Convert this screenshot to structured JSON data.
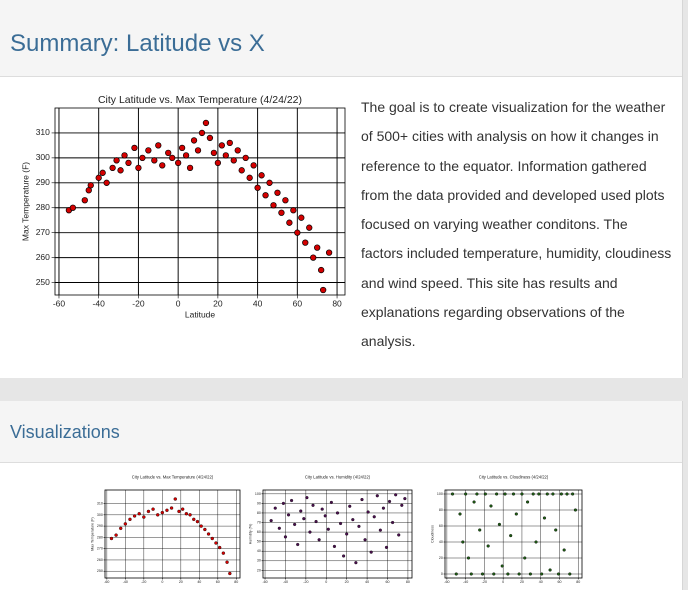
{
  "header": {
    "title": "Summary: Latitude vs X"
  },
  "summary": {
    "text": "The goal is to create visualization for the weather of 500+ cities with analysis on how it changes in reference to the equator. Information gathered from the data provided and developed used plots focused on varying weather conditons. The factors included temperature, humidity, cloudiness and wind speed. This site has results and explanations regarding observations of the analysis."
  },
  "visualizations": {
    "title": "Visualizations"
  },
  "chart_data": [
    {
      "type": "scatter",
      "title": "City Latitude vs. Max Temperature (4/24/22)",
      "xlabel": "Latitude",
      "ylabel": "Max Temperature (F)",
      "x": [
        -55,
        -53,
        -47,
        -45,
        -44,
        -40,
        -38,
        -36,
        -33,
        -31,
        -29,
        -27,
        -25,
        -22,
        -20,
        -18,
        -15,
        -12,
        -10,
        -8,
        -5,
        -3,
        0,
        2,
        4,
        6,
        8,
        10,
        12,
        14,
        16,
        18,
        20,
        22,
        24,
        26,
        28,
        30,
        32,
        34,
        36,
        38,
        40,
        42,
        44,
        46,
        48,
        50,
        52,
        54,
        56,
        58,
        60,
        62,
        64,
        66,
        68,
        70,
        72,
        73,
        76
      ],
      "values": [
        279,
        280,
        283,
        287,
        289,
        292,
        294,
        290,
        296,
        299,
        295,
        301,
        298,
        304,
        296,
        300,
        303,
        299,
        305,
        297,
        302,
        300,
        298,
        304,
        301,
        296,
        307,
        303,
        310,
        314,
        308,
        302,
        298,
        305,
        301,
        306,
        299,
        303,
        295,
        300,
        292,
        297,
        288,
        293,
        285,
        290,
        281,
        286,
        278,
        283,
        274,
        279,
        270,
        276,
        266,
        272,
        260,
        264,
        255,
        247,
        262
      ],
      "color": "#d40000",
      "edgecolor": "#000000",
      "xlim": [
        -62,
        84
      ],
      "ylim": [
        245,
        320
      ],
      "xticks": [
        -60,
        -40,
        -20,
        0,
        20,
        40,
        60,
        80
      ],
      "yticks": [
        250,
        260,
        270,
        280,
        290,
        300,
        310
      ],
      "grid": true
    },
    {
      "type": "scatter",
      "title": "City Latitude vs. Max Temperature (4/24/22)",
      "ylabel": "Max Temperature (F)",
      "x": [
        -55,
        -50,
        -45,
        -40,
        -35,
        -30,
        -25,
        -20,
        -15,
        -10,
        -5,
        0,
        5,
        10,
        14,
        18,
        22,
        26,
        30,
        34,
        38,
        42,
        46,
        50,
        54,
        58,
        62,
        66,
        70,
        73
      ],
      "values": [
        279,
        282,
        288,
        292,
        296,
        299,
        301,
        298,
        303,
        305,
        300,
        302,
        304,
        306,
        314,
        303,
        305,
        301,
        300,
        296,
        294,
        290,
        287,
        283,
        279,
        275,
        271,
        266,
        258,
        248
      ],
      "color": "#d40000",
      "edgecolor": "#000000",
      "xlim": [
        -62,
        84
      ],
      "ylim": [
        244,
        322
      ],
      "xticks": [
        -60,
        -40,
        -20,
        0,
        20,
        40,
        60,
        80
      ],
      "yticks": [
        250,
        260,
        270,
        280,
        290,
        300,
        310
      ],
      "grid": true
    },
    {
      "type": "scatter",
      "title": "City Latitude vs. Humidity (4/24/22)",
      "ylabel": "Humidity (%)",
      "x": [
        -54,
        -50,
        -46,
        -42,
        -40,
        -37,
        -34,
        -31,
        -28,
        -25,
        -22,
        -19,
        -16,
        -13,
        -10,
        -7,
        -4,
        -1,
        2,
        5,
        8,
        11,
        14,
        17,
        20,
        23,
        26,
        29,
        32,
        35,
        38,
        41,
        44,
        47,
        50,
        53,
        56,
        59,
        62,
        65,
        68,
        71,
        74,
        77
      ],
      "values": [
        72,
        85,
        64,
        90,
        55,
        78,
        93,
        68,
        47,
        82,
        74,
        96,
        60,
        88,
        71,
        52,
        84,
        77,
        63,
        91,
        45,
        80,
        69,
        35,
        58,
        87,
        73,
        28,
        66,
        94,
        52,
        81,
        39,
        76,
        98,
        62,
        85,
        44,
        92,
        70,
        99,
        57,
        88,
        95
      ],
      "color": "#4b0f4f",
      "edgecolor": "#000000",
      "xlim": [
        -62,
        84
      ],
      "ylim": [
        12,
        104
      ],
      "xticks": [
        -60,
        -40,
        -20,
        0,
        20,
        40,
        60,
        80
      ],
      "yticks": [
        20,
        30,
        40,
        50,
        60,
        70,
        80,
        90,
        100
      ],
      "grid": true
    },
    {
      "type": "scatter",
      "title": "City Latitude vs. Cloudiness (4/24/22)",
      "ylabel": "Cloudiness",
      "x": [
        -54,
        -50,
        -46,
        -43,
        -40,
        -37,
        -34,
        -31,
        -28,
        -25,
        -22,
        -19,
        -16,
        -13,
        -10,
        -7,
        -4,
        -1,
        2,
        5,
        8,
        11,
        14,
        17,
        20,
        23,
        26,
        29,
        32,
        35,
        38,
        41,
        44,
        47,
        50,
        53,
        56,
        59,
        62,
        65,
        68,
        71,
        74,
        77
      ],
      "values": [
        100,
        0,
        75,
        40,
        100,
        20,
        0,
        90,
        100,
        55,
        0,
        100,
        35,
        85,
        0,
        100,
        62,
        10,
        100,
        0,
        48,
        100,
        75,
        0,
        100,
        20,
        90,
        0,
        100,
        40,
        100,
        0,
        70,
        100,
        5,
        100,
        55,
        0,
        100,
        30,
        100,
        0,
        100,
        80
      ],
      "color": "#1e5a14",
      "edgecolor": "#000000",
      "xlim": [
        -62,
        84
      ],
      "ylim": [
        -5,
        105
      ],
      "xticks": [
        -60,
        -40,
        -20,
        0,
        20,
        40,
        60,
        80
      ],
      "yticks": [
        0,
        20,
        40,
        60,
        80,
        100
      ],
      "grid": true
    }
  ]
}
